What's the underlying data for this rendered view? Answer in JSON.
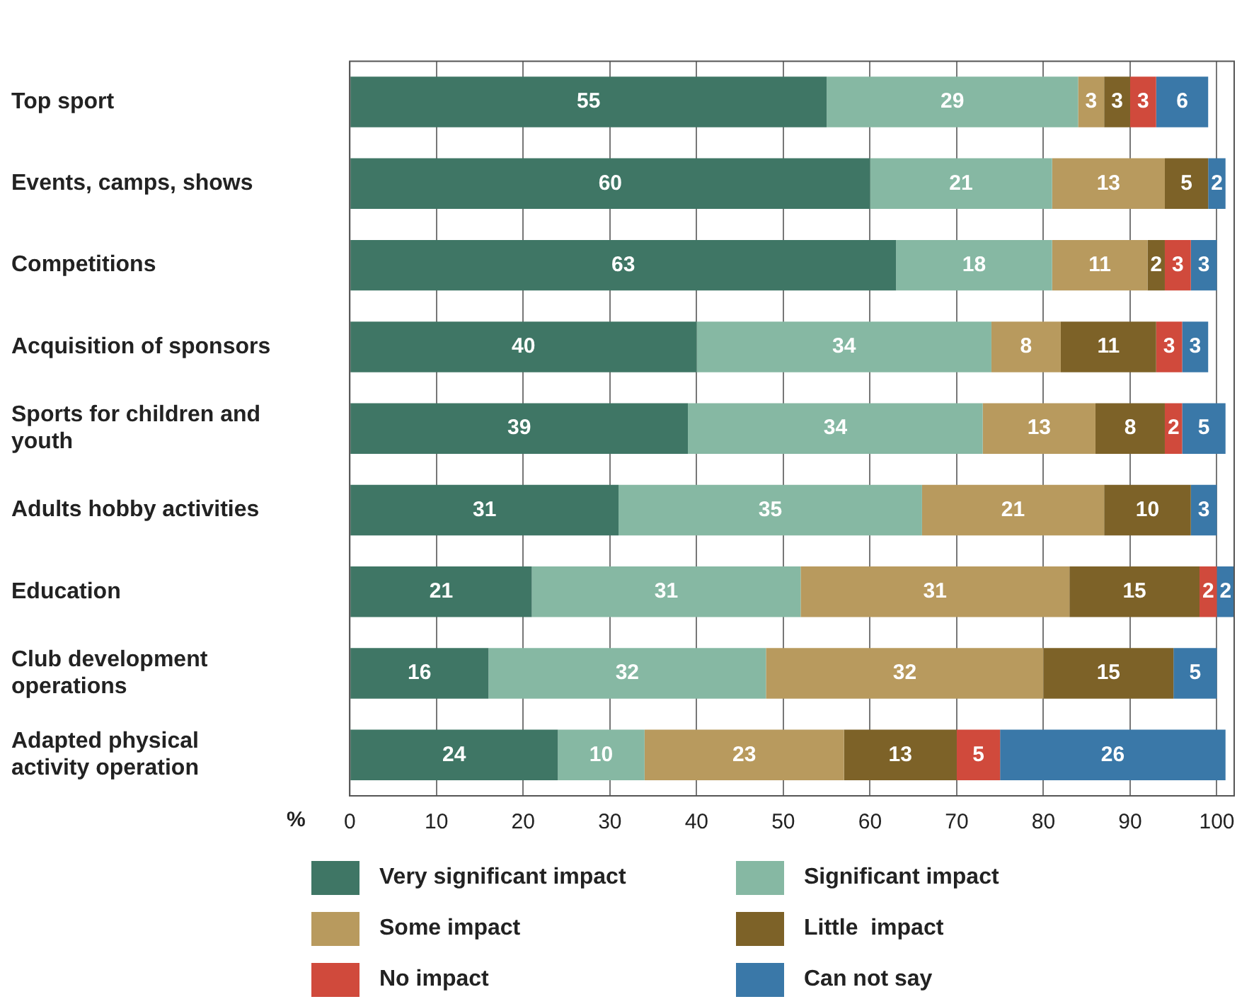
{
  "chart_data": {
    "type": "bar",
    "orientation": "horizontal",
    "stacked": true,
    "data_labels": true,
    "grid": "x",
    "legend": "bottom",
    "xlabel": "%",
    "categories": [
      "Top sport",
      "Events, camps, shows",
      "Competitions",
      "Acquisition of sponsors",
      "Sports for children and youth",
      "Adults hobby activities",
      "Education",
      "Club development operations",
      "Adapted physical activity operation"
    ],
    "xlim": [
      0,
      102
    ],
    "xticks": [
      0,
      10,
      20,
      30,
      40,
      50,
      60,
      70,
      80,
      90,
      100
    ],
    "series": [
      {
        "name": "Very significant impact",
        "color": "#3f7665",
        "values": [
          55,
          60,
          63,
          40,
          39,
          31,
          21,
          16,
          24
        ]
      },
      {
        "name": "Significant impact",
        "color": "#86b8a3",
        "values": [
          29,
          21,
          18,
          34,
          34,
          35,
          31,
          32,
          10
        ]
      },
      {
        "name": "Some impact",
        "color": "#b89a5e",
        "values": [
          3,
          13,
          11,
          8,
          13,
          21,
          31,
          32,
          23
        ]
      },
      {
        "name": "Little  impact",
        "color": "#7d6228",
        "values": [
          3,
          5,
          2,
          11,
          8,
          10,
          15,
          15,
          13
        ]
      },
      {
        "name": "No impact",
        "color": "#d04a3c",
        "values": [
          3,
          null,
          3,
          3,
          2,
          null,
          2,
          null,
          5
        ]
      },
      {
        "name": "Can not say",
        "color": "#3a78a8",
        "values": [
          6,
          2,
          3,
          3,
          5,
          3,
          2,
          5,
          26
        ]
      }
    ]
  }
}
